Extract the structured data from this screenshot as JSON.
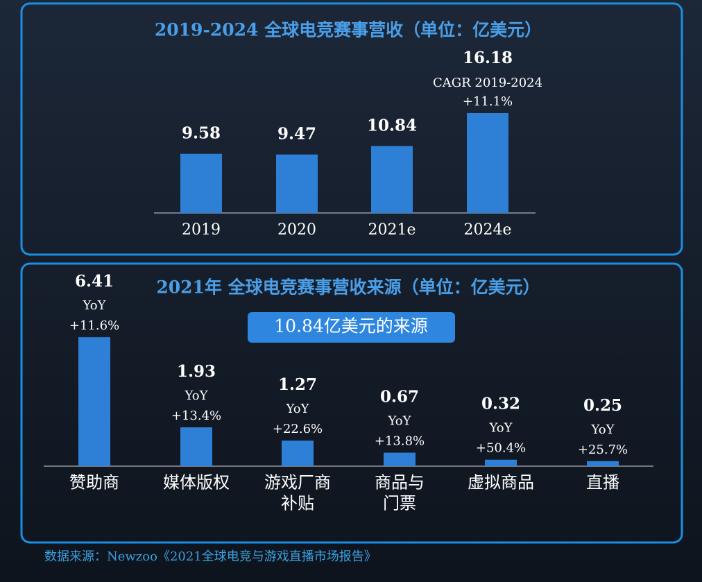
{
  "chart_data": [
    {
      "type": "bar",
      "title": "2019-2024 全球电竞赛事营收（单位：亿美元）",
      "categories": [
        "2019",
        "2020",
        "2021e",
        "2024e"
      ],
      "values": [
        9.58,
        9.47,
        10.84,
        16.18
      ],
      "color": "#2e7fd6",
      "annotation": {
        "index": 3,
        "lines": [
          "CAGR 2019-2024",
          "+11.1%"
        ]
      }
    },
    {
      "type": "bar",
      "title": "2021年 全球电竞赛事营收来源（单位：亿美元）",
      "subtitle": "10.84亿美元的来源",
      "categories": [
        [
          "赞助商"
        ],
        [
          "媒体版权"
        ],
        [
          "游戏厂商",
          "补贴"
        ],
        [
          "商品与",
          "门票"
        ],
        [
          "虚拟商品"
        ],
        [
          "直播"
        ]
      ],
      "values": [
        6.41,
        1.93,
        1.27,
        0.67,
        0.32,
        0.25
      ],
      "color": "#2e7fd6",
      "growth_label": "YoY",
      "growth": [
        11.6,
        13.4,
        22.6,
        13.8,
        50.4,
        25.7
      ],
      "growth_labels": [
        "+11.6%",
        "+13.4%",
        "+22.6%",
        "+13.8%",
        "+50.4%",
        "+25.7%"
      ]
    }
  ],
  "source": "数据来源：Newzoo《2021全球电竞与游戏直播市场报告》"
}
